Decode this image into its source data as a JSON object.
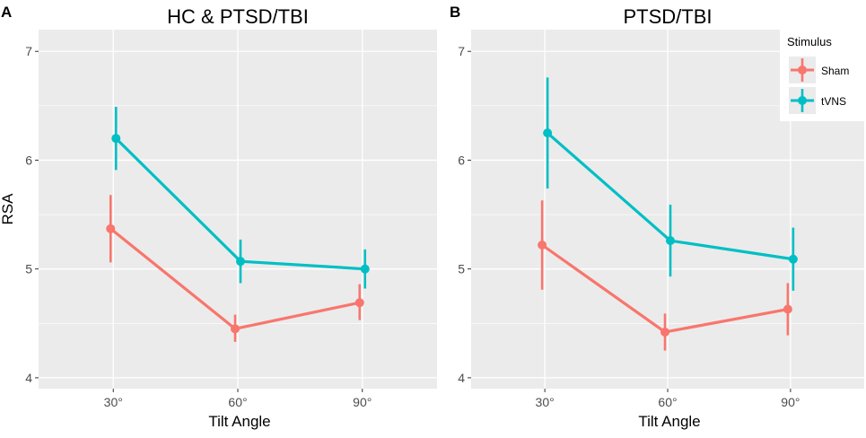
{
  "colors": {
    "sham": "#F8766D",
    "tvns": "#00BFC4",
    "panel_bg": "#EBEBEB",
    "grid": "#FFFFFF",
    "text": "#4D4D4D",
    "title": "#000000"
  },
  "legend": {
    "title": "Stimulus",
    "entries": [
      "Sham",
      "tVNS"
    ]
  },
  "chart_data": [
    {
      "type": "line",
      "panel_letter": "A",
      "title": "HC & PTSD/TBI",
      "xlabel": "Tilt Angle",
      "ylabel": "RSA",
      "categories": [
        "30°",
        "60°",
        "90°"
      ],
      "yticks": [
        4,
        5,
        6,
        7
      ],
      "ylim": [
        3.9,
        7.2
      ],
      "grid": true,
      "series": [
        {
          "name": "Sham",
          "values": [
            5.37,
            4.45,
            4.69
          ],
          "lower": [
            5.06,
            4.33,
            4.53
          ],
          "upper": [
            5.68,
            4.58,
            4.86
          ]
        },
        {
          "name": "tVNS",
          "values": [
            6.2,
            5.07,
            5.0
          ],
          "lower": [
            5.91,
            4.87,
            4.82
          ],
          "upper": [
            6.49,
            5.27,
            5.18
          ]
        }
      ]
    },
    {
      "type": "line",
      "panel_letter": "B",
      "title": "PTSD/TBI",
      "xlabel": "Tilt Angle",
      "ylabel": "",
      "categories": [
        "30°",
        "60°",
        "90°"
      ],
      "yticks": [
        4,
        5,
        6,
        7
      ],
      "ylim": [
        3.9,
        7.2
      ],
      "grid": true,
      "legend_position": "top-right",
      "series": [
        {
          "name": "Sham",
          "values": [
            5.22,
            4.42,
            4.63
          ],
          "lower": [
            4.81,
            4.25,
            4.39
          ],
          "upper": [
            5.63,
            4.59,
            4.87
          ]
        },
        {
          "name": "tVNS",
          "values": [
            6.25,
            5.26,
            5.09
          ],
          "lower": [
            5.74,
            4.93,
            4.8
          ],
          "upper": [
            6.76,
            5.59,
            5.38
          ]
        }
      ]
    }
  ]
}
